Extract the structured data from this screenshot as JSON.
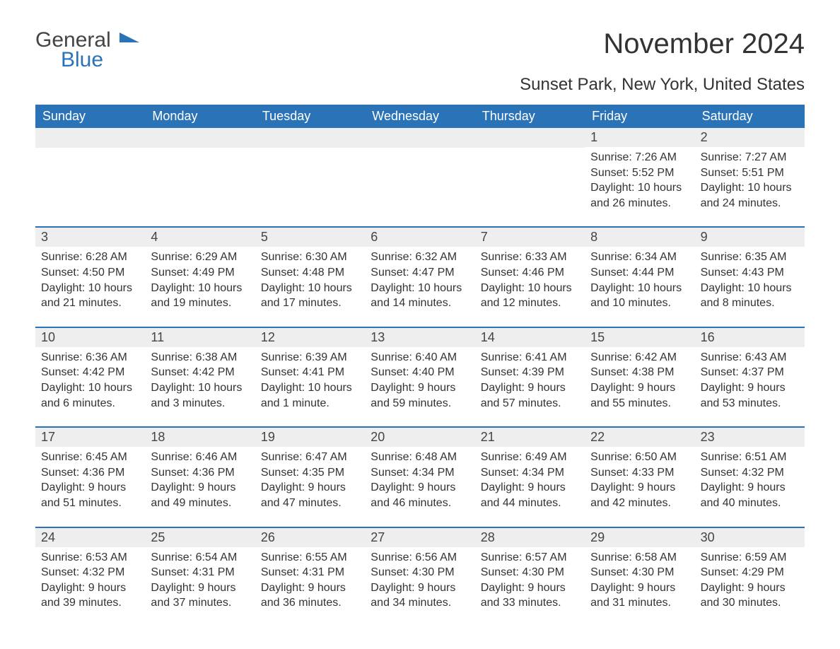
{
  "logo": {
    "text1": "General",
    "text2": "Blue",
    "accent_color": "#2b73b7"
  },
  "title": "November 2024",
  "location": "Sunset Park, New York, United States",
  "colors": {
    "header_bg": "#2b73b7",
    "header_text": "#ffffff",
    "row_stripe": "#eeeeee",
    "week_border": "#2b73b7",
    "text": "#333333",
    "background": "#ffffff"
  },
  "days_of_week": [
    "Sunday",
    "Monday",
    "Tuesday",
    "Wednesday",
    "Thursday",
    "Friday",
    "Saturday"
  ],
  "weeks": [
    [
      {
        "empty": true
      },
      {
        "empty": true
      },
      {
        "empty": true
      },
      {
        "empty": true
      },
      {
        "empty": true
      },
      {
        "num": "1",
        "sunrise": "Sunrise: 7:26 AM",
        "sunset": "Sunset: 5:52 PM",
        "daylight": "Daylight: 10 hours and 26 minutes."
      },
      {
        "num": "2",
        "sunrise": "Sunrise: 7:27 AM",
        "sunset": "Sunset: 5:51 PM",
        "daylight": "Daylight: 10 hours and 24 minutes."
      }
    ],
    [
      {
        "num": "3",
        "sunrise": "Sunrise: 6:28 AM",
        "sunset": "Sunset: 4:50 PM",
        "daylight": "Daylight: 10 hours and 21 minutes."
      },
      {
        "num": "4",
        "sunrise": "Sunrise: 6:29 AM",
        "sunset": "Sunset: 4:49 PM",
        "daylight": "Daylight: 10 hours and 19 minutes."
      },
      {
        "num": "5",
        "sunrise": "Sunrise: 6:30 AM",
        "sunset": "Sunset: 4:48 PM",
        "daylight": "Daylight: 10 hours and 17 minutes."
      },
      {
        "num": "6",
        "sunrise": "Sunrise: 6:32 AM",
        "sunset": "Sunset: 4:47 PM",
        "daylight": "Daylight: 10 hours and 14 minutes."
      },
      {
        "num": "7",
        "sunrise": "Sunrise: 6:33 AM",
        "sunset": "Sunset: 4:46 PM",
        "daylight": "Daylight: 10 hours and 12 minutes."
      },
      {
        "num": "8",
        "sunrise": "Sunrise: 6:34 AM",
        "sunset": "Sunset: 4:44 PM",
        "daylight": "Daylight: 10 hours and 10 minutes."
      },
      {
        "num": "9",
        "sunrise": "Sunrise: 6:35 AM",
        "sunset": "Sunset: 4:43 PM",
        "daylight": "Daylight: 10 hours and 8 minutes."
      }
    ],
    [
      {
        "num": "10",
        "sunrise": "Sunrise: 6:36 AM",
        "sunset": "Sunset: 4:42 PM",
        "daylight": "Daylight: 10 hours and 6 minutes."
      },
      {
        "num": "11",
        "sunrise": "Sunrise: 6:38 AM",
        "sunset": "Sunset: 4:42 PM",
        "daylight": "Daylight: 10 hours and 3 minutes."
      },
      {
        "num": "12",
        "sunrise": "Sunrise: 6:39 AM",
        "sunset": "Sunset: 4:41 PM",
        "daylight": "Daylight: 10 hours and 1 minute."
      },
      {
        "num": "13",
        "sunrise": "Sunrise: 6:40 AM",
        "sunset": "Sunset: 4:40 PM",
        "daylight": "Daylight: 9 hours and 59 minutes."
      },
      {
        "num": "14",
        "sunrise": "Sunrise: 6:41 AM",
        "sunset": "Sunset: 4:39 PM",
        "daylight": "Daylight: 9 hours and 57 minutes."
      },
      {
        "num": "15",
        "sunrise": "Sunrise: 6:42 AM",
        "sunset": "Sunset: 4:38 PM",
        "daylight": "Daylight: 9 hours and 55 minutes."
      },
      {
        "num": "16",
        "sunrise": "Sunrise: 6:43 AM",
        "sunset": "Sunset: 4:37 PM",
        "daylight": "Daylight: 9 hours and 53 minutes."
      }
    ],
    [
      {
        "num": "17",
        "sunrise": "Sunrise: 6:45 AM",
        "sunset": "Sunset: 4:36 PM",
        "daylight": "Daylight: 9 hours and 51 minutes."
      },
      {
        "num": "18",
        "sunrise": "Sunrise: 6:46 AM",
        "sunset": "Sunset: 4:36 PM",
        "daylight": "Daylight: 9 hours and 49 minutes."
      },
      {
        "num": "19",
        "sunrise": "Sunrise: 6:47 AM",
        "sunset": "Sunset: 4:35 PM",
        "daylight": "Daylight: 9 hours and 47 minutes."
      },
      {
        "num": "20",
        "sunrise": "Sunrise: 6:48 AM",
        "sunset": "Sunset: 4:34 PM",
        "daylight": "Daylight: 9 hours and 46 minutes."
      },
      {
        "num": "21",
        "sunrise": "Sunrise: 6:49 AM",
        "sunset": "Sunset: 4:34 PM",
        "daylight": "Daylight: 9 hours and 44 minutes."
      },
      {
        "num": "22",
        "sunrise": "Sunrise: 6:50 AM",
        "sunset": "Sunset: 4:33 PM",
        "daylight": "Daylight: 9 hours and 42 minutes."
      },
      {
        "num": "23",
        "sunrise": "Sunrise: 6:51 AM",
        "sunset": "Sunset: 4:32 PM",
        "daylight": "Daylight: 9 hours and 40 minutes."
      }
    ],
    [
      {
        "num": "24",
        "sunrise": "Sunrise: 6:53 AM",
        "sunset": "Sunset: 4:32 PM",
        "daylight": "Daylight: 9 hours and 39 minutes."
      },
      {
        "num": "25",
        "sunrise": "Sunrise: 6:54 AM",
        "sunset": "Sunset: 4:31 PM",
        "daylight": "Daylight: 9 hours and 37 minutes."
      },
      {
        "num": "26",
        "sunrise": "Sunrise: 6:55 AM",
        "sunset": "Sunset: 4:31 PM",
        "daylight": "Daylight: 9 hours and 36 minutes."
      },
      {
        "num": "27",
        "sunrise": "Sunrise: 6:56 AM",
        "sunset": "Sunset: 4:30 PM",
        "daylight": "Daylight: 9 hours and 34 minutes."
      },
      {
        "num": "28",
        "sunrise": "Sunrise: 6:57 AM",
        "sunset": "Sunset: 4:30 PM",
        "daylight": "Daylight: 9 hours and 33 minutes."
      },
      {
        "num": "29",
        "sunrise": "Sunrise: 6:58 AM",
        "sunset": "Sunset: 4:30 PM",
        "daylight": "Daylight: 9 hours and 31 minutes."
      },
      {
        "num": "30",
        "sunrise": "Sunrise: 6:59 AM",
        "sunset": "Sunset: 4:29 PM",
        "daylight": "Daylight: 9 hours and 30 minutes."
      }
    ]
  ]
}
